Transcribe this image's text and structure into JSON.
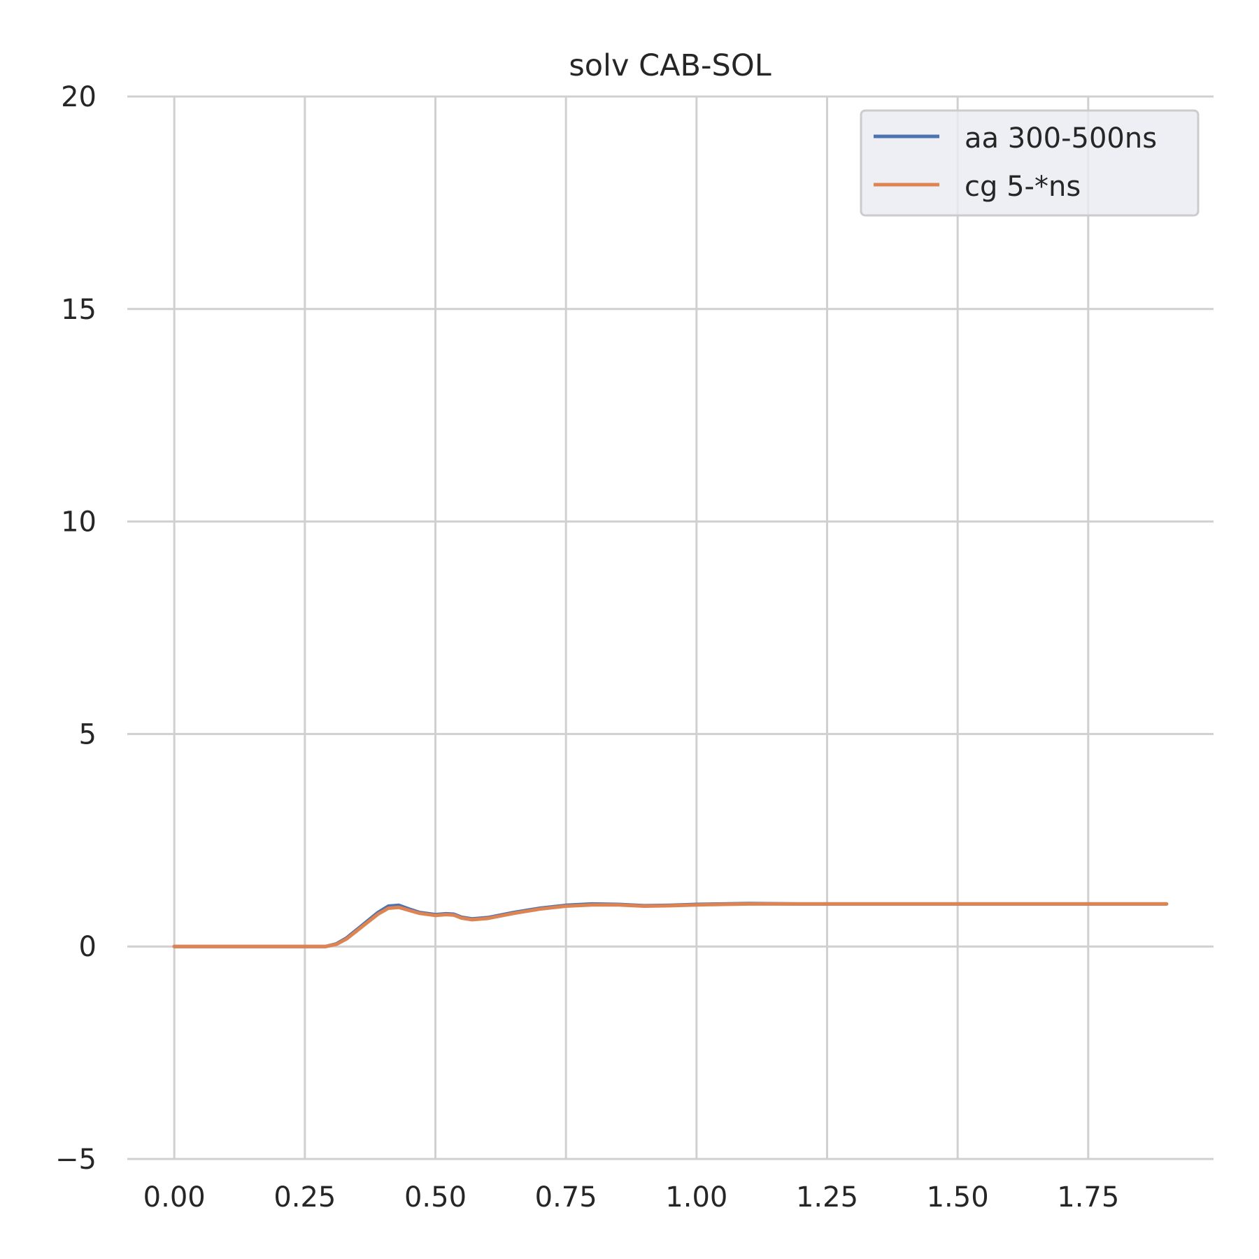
{
  "chart_data": {
    "type": "line",
    "title": "solv CAB-SOL",
    "xlabel": "",
    "ylabel": "",
    "xlim": [
      -0.09,
      1.99
    ],
    "ylim": [
      -5,
      20
    ],
    "x_ticks": [
      0.0,
      0.25,
      0.5,
      0.75,
      1.0,
      1.25,
      1.5,
      1.75
    ],
    "x_tick_labels": [
      "0.00",
      "0.25",
      "0.50",
      "0.75",
      "1.00",
      "1.25",
      "1.50",
      "1.75"
    ],
    "y_ticks": [
      -5,
      0,
      5,
      10,
      15,
      20
    ],
    "y_tick_labels": [
      "−5",
      "0",
      "5",
      "10",
      "15",
      "20"
    ],
    "grid": true,
    "legend_position": "top-right",
    "series": [
      {
        "name": "aa 300-500ns",
        "color": "#4c72b0",
        "x": [
          0.0,
          0.1,
          0.2,
          0.26,
          0.29,
          0.31,
          0.33,
          0.36,
          0.39,
          0.41,
          0.43,
          0.45,
          0.47,
          0.5,
          0.52,
          0.535,
          0.55,
          0.57,
          0.6,
          0.65,
          0.7,
          0.75,
          0.8,
          0.85,
          0.9,
          0.95,
          1.0,
          1.05,
          1.1,
          1.2,
          1.3,
          1.4,
          1.5,
          1.6,
          1.7,
          1.8,
          1.9
        ],
        "y": [
          0.0,
          0.0,
          0.0,
          0.0,
          0.0,
          0.06,
          0.2,
          0.5,
          0.8,
          0.95,
          0.97,
          0.88,
          0.8,
          0.75,
          0.77,
          0.76,
          0.69,
          0.65,
          0.68,
          0.8,
          0.9,
          0.97,
          1.0,
          0.99,
          0.96,
          0.97,
          0.99,
          1.0,
          1.01,
          1.0,
          1.0,
          1.0,
          1.0,
          1.0,
          1.0,
          1.0,
          1.0
        ]
      },
      {
        "name": "cg 5-*ns",
        "color": "#dd8452",
        "x": [
          0.0,
          0.1,
          0.2,
          0.26,
          0.29,
          0.31,
          0.33,
          0.36,
          0.39,
          0.41,
          0.43,
          0.45,
          0.47,
          0.5,
          0.52,
          0.535,
          0.55,
          0.57,
          0.6,
          0.65,
          0.7,
          0.75,
          0.8,
          0.85,
          0.9,
          0.95,
          1.0,
          1.05,
          1.1,
          1.2,
          1.3,
          1.4,
          1.5,
          1.6,
          1.7,
          1.8,
          1.9
        ],
        "y": [
          0.0,
          0.0,
          0.0,
          0.0,
          0.0,
          0.05,
          0.18,
          0.47,
          0.76,
          0.9,
          0.92,
          0.85,
          0.78,
          0.73,
          0.75,
          0.74,
          0.67,
          0.63,
          0.66,
          0.78,
          0.88,
          0.95,
          0.98,
          0.98,
          0.95,
          0.96,
          0.98,
          0.99,
          1.0,
          1.0,
          1.0,
          1.0,
          1.0,
          1.0,
          1.0,
          1.0,
          1.0
        ]
      }
    ]
  }
}
